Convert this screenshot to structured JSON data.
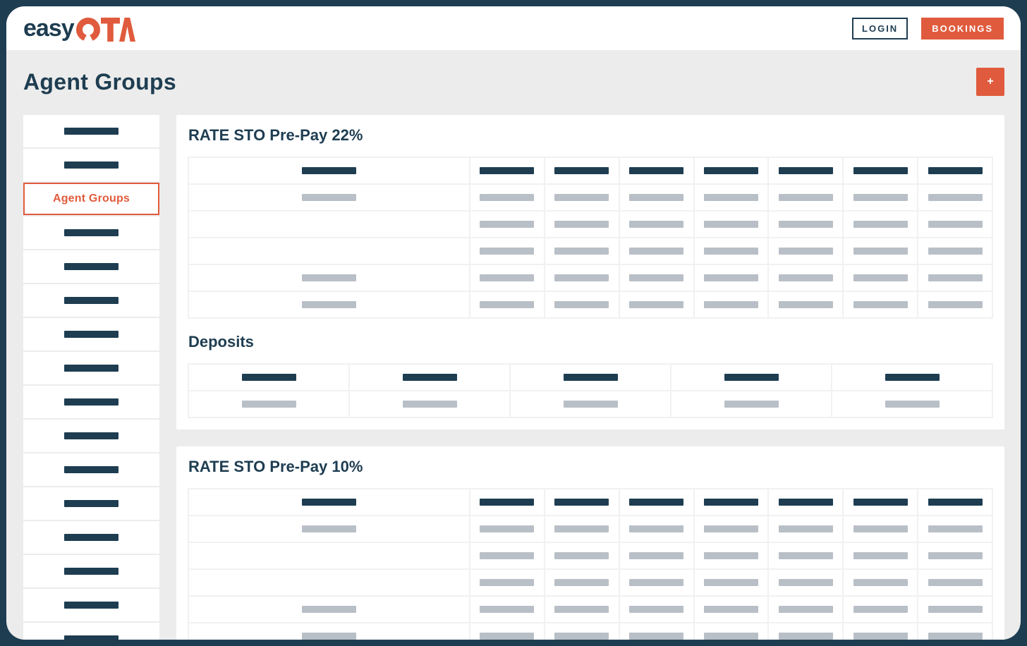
{
  "theme": {
    "navy": "#1e3d51",
    "orange": "#e05b3d",
    "page_background": "#ececec",
    "card_background": "#ffffff",
    "placeholder_dark": "#1e3d51",
    "placeholder_gray": "#b9bfc6"
  },
  "header": {
    "logo_text_primary": "easy",
    "logo_text_accent": "OTA",
    "login_label": "LOGIN",
    "bookings_label": "BOOKINGS"
  },
  "page": {
    "title": "Agent Groups",
    "add_button_label": "+"
  },
  "sidebar": {
    "items": [
      {
        "type": "placeholder"
      },
      {
        "type": "placeholder"
      },
      {
        "type": "active",
        "label": "Agent Groups",
        "active": true
      },
      {
        "type": "placeholder"
      },
      {
        "type": "placeholder"
      },
      {
        "type": "placeholder"
      },
      {
        "type": "placeholder"
      },
      {
        "type": "placeholder"
      },
      {
        "type": "placeholder"
      },
      {
        "type": "placeholder"
      },
      {
        "type": "placeholder"
      },
      {
        "type": "placeholder"
      },
      {
        "type": "placeholder"
      },
      {
        "type": "placeholder"
      },
      {
        "type": "placeholder"
      },
      {
        "type": "placeholder"
      }
    ]
  },
  "sections": [
    {
      "title": "RATE STO Pre-Pay 22%",
      "table": {
        "kind": "redacted-placeholder",
        "first_column_wide": true,
        "data_columns": 7,
        "rows": [
          {
            "first_col_bar": true
          },
          {
            "first_col_bar": false
          },
          {
            "first_col_bar": false
          },
          {
            "first_col_bar": true
          },
          {
            "first_col_bar": true
          }
        ]
      }
    },
    {
      "title": "Deposits",
      "table": {
        "kind": "redacted-placeholder",
        "equal_columns": 5,
        "rows": [
          {
            "first_col_bar": true
          }
        ]
      }
    },
    {
      "title": "RATE STO Pre-Pay 10%",
      "table": {
        "kind": "redacted-placeholder",
        "first_column_wide": true,
        "data_columns": 7,
        "rows": [
          {
            "first_col_bar": true
          },
          {
            "first_col_bar": false
          },
          {
            "first_col_bar": false
          },
          {
            "first_col_bar": true
          },
          {
            "first_col_bar": true
          }
        ]
      }
    }
  ]
}
